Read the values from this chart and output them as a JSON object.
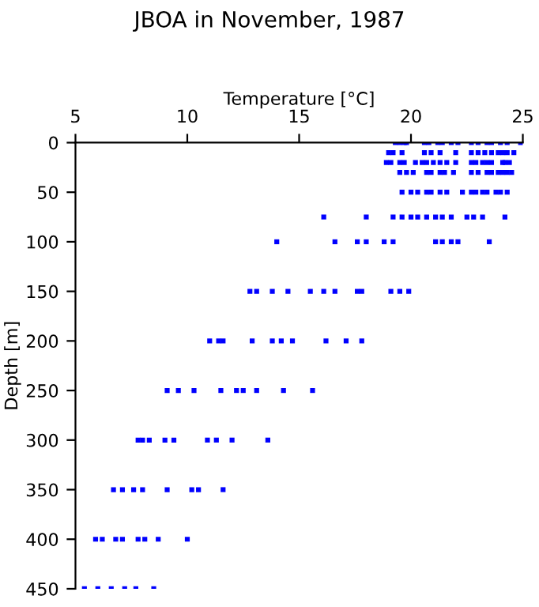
{
  "chart_data": {
    "type": "scatter",
    "title": "JBOA in November, 1987",
    "xlabel": "Temperature [°C]",
    "ylabel": "Depth [m]",
    "xlim": [
      5,
      25
    ],
    "xticks": [
      5,
      10,
      15,
      20,
      25
    ],
    "ylim": [
      450,
      0
    ],
    "yticks": [
      0,
      50,
      100,
      150,
      200,
      250,
      300,
      350,
      400,
      450
    ],
    "grid": false,
    "marker": "square",
    "series": [
      {
        "color": "#0000ff",
        "x": [
          19.3,
          19.5,
          19.7,
          19.8,
          20.6,
          20.8,
          21.2,
          21.4,
          21.8,
          22.1,
          22.7,
          23.0,
          23.4,
          23.6,
          24.0,
          24.3,
          24.9,
          19.0,
          19.2,
          19.6,
          20.6,
          20.9,
          21.3,
          22.0,
          22.7,
          23.0,
          23.3,
          23.6,
          23.9,
          24.1,
          24.3,
          24.6,
          18.9,
          19.1,
          19.5,
          19.7,
          20.2,
          20.5,
          20.7,
          21.0,
          21.3,
          21.6,
          22.0,
          22.7,
          22.9,
          23.2,
          23.4,
          23.6,
          24.1,
          24.2,
          24.4,
          19.5,
          19.8,
          20.1,
          20.7,
          20.9,
          21.3,
          21.5,
          21.9,
          22.7,
          23.0,
          23.4,
          23.6,
          23.9,
          24.1,
          24.3,
          24.5,
          19.6,
          20.0,
          20.3,
          20.7,
          20.9,
          21.3,
          21.6,
          22.3,
          22.7,
          22.9,
          23.2,
          23.4,
          23.8,
          24.0,
          24.3,
          16.1,
          18.0,
          19.2,
          19.6,
          20.0,
          20.3,
          20.7,
          21.1,
          21.4,
          21.8,
          22.5,
          22.8,
          23.2,
          24.2,
          14.0,
          16.6,
          17.6,
          18.0,
          18.8,
          19.2,
          21.1,
          21.4,
          21.8,
          22.1,
          23.5,
          12.8,
          13.1,
          13.8,
          14.5,
          15.5,
          16.1,
          16.6,
          17.6,
          17.8,
          19.1,
          19.5,
          19.9,
          11.0,
          11.4,
          11.6,
          12.9,
          13.8,
          14.2,
          14.7,
          16.2,
          17.1,
          17.8,
          9.1,
          9.6,
          10.3,
          11.5,
          12.2,
          12.5,
          13.1,
          14.3,
          15.6,
          7.8,
          8.0,
          8.3,
          9.0,
          9.4,
          10.9,
          11.3,
          12.0,
          13.6,
          6.7,
          7.1,
          7.6,
          8.0,
          9.1,
          10.2,
          10.5,
          11.6,
          5.9,
          6.2,
          6.8,
          7.1,
          7.8,
          8.1,
          8.7,
          10.0,
          5.4,
          6.0,
          6.6,
          7.2,
          7.7,
          8.5
        ],
        "values": [
          0,
          0,
          0,
          0,
          0,
          0,
          0,
          0,
          0,
          0,
          0,
          0,
          0,
          0,
          0,
          0,
          0,
          10,
          10,
          10,
          10,
          10,
          10,
          10,
          10,
          10,
          10,
          10,
          10,
          10,
          10,
          10,
          20,
          20,
          20,
          20,
          20,
          20,
          20,
          20,
          20,
          20,
          20,
          20,
          20,
          20,
          20,
          20,
          20,
          20,
          20,
          30,
          30,
          30,
          30,
          30,
          30,
          30,
          30,
          30,
          30,
          30,
          30,
          30,
          30,
          30,
          30,
          50,
          50,
          50,
          50,
          50,
          50,
          50,
          50,
          50,
          50,
          50,
          50,
          50,
          50,
          50,
          75,
          75,
          75,
          75,
          75,
          75,
          75,
          75,
          75,
          75,
          75,
          75,
          75,
          75,
          100,
          100,
          100,
          100,
          100,
          100,
          100,
          100,
          100,
          100,
          100,
          150,
          150,
          150,
          150,
          150,
          150,
          150,
          150,
          150,
          150,
          150,
          150,
          200,
          200,
          200,
          200,
          200,
          200,
          200,
          200,
          200,
          200,
          250,
          250,
          250,
          250,
          250,
          250,
          250,
          250,
          250,
          300,
          300,
          300,
          300,
          300,
          300,
          300,
          300,
          300,
          350,
          350,
          350,
          350,
          350,
          350,
          350,
          350,
          400,
          400,
          400,
          400,
          400,
          400,
          400,
          400,
          450,
          450,
          450,
          450,
          450,
          450
        ]
      }
    ]
  }
}
